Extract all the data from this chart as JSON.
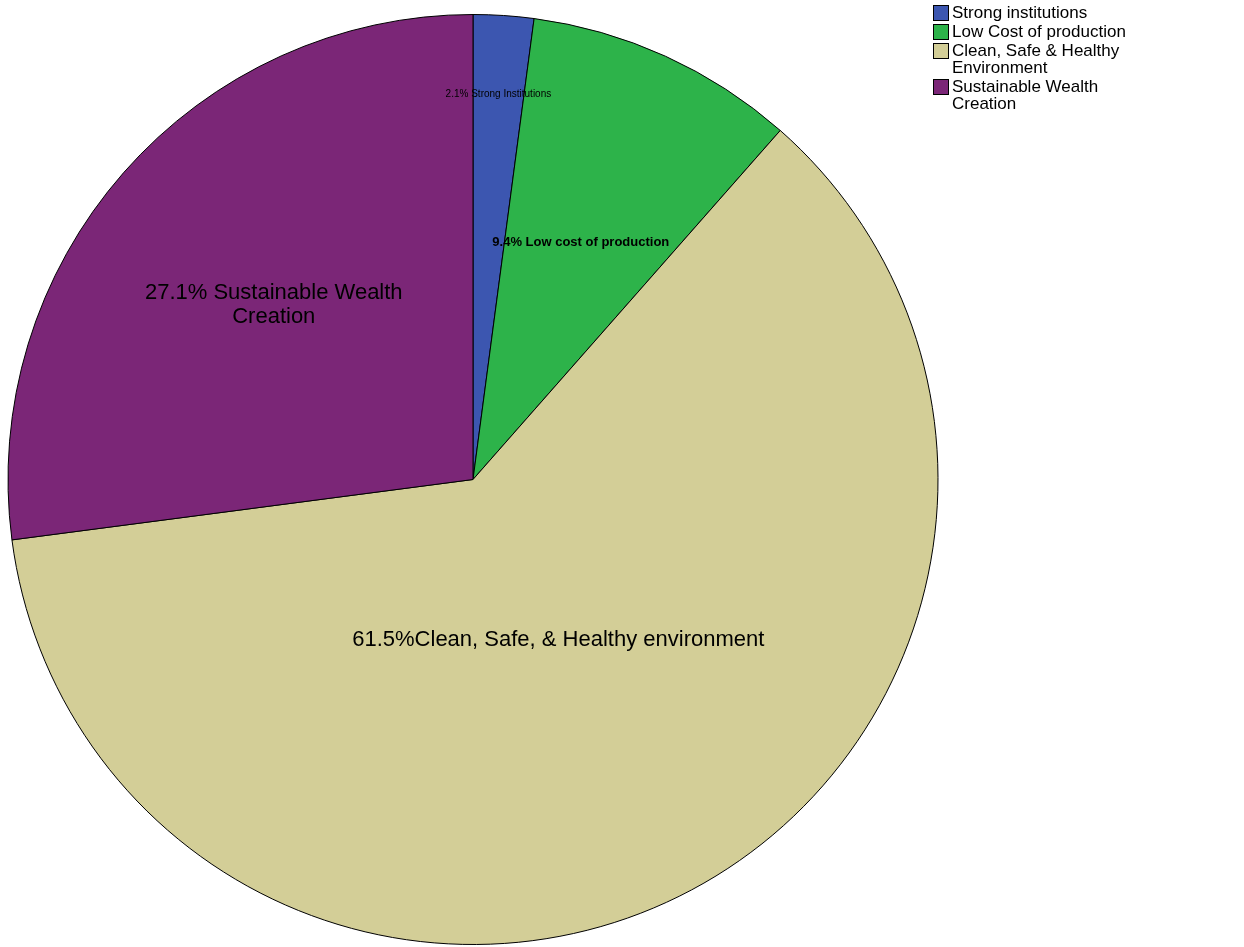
{
  "chart_data": {
    "type": "pie",
    "categories": [
      "Strong institutions",
      "Low Cost of production",
      "Clean, Safe & Healthy Environment",
      "Sustainable Wealth Creation"
    ],
    "values": [
      2.1,
      9.4,
      61.5,
      27.1
    ],
    "colors": [
      "#3c56b0",
      "#2db34a",
      "#d3ce97",
      "#7b2677"
    ],
    "value_labels": [
      "2.1% Strong Institutions",
      "9.4% Low cost of production",
      "61.5%Clean, Safe, & Healthy environment",
      "27.1% Sustainable Wealth Creation"
    ],
    "legend": "top right"
  }
}
